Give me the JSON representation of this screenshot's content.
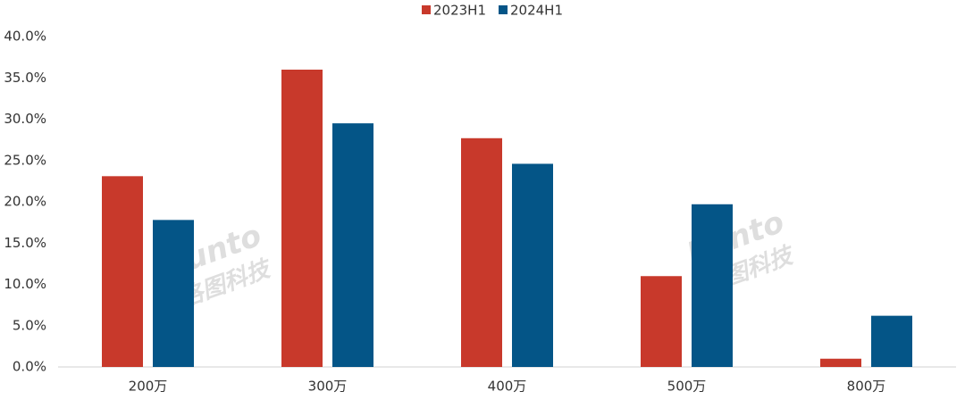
{
  "chart_data": {
    "type": "bar",
    "categories": [
      "200万",
      "300万",
      "400万",
      "500万",
      "800万"
    ],
    "series": [
      {
        "name": "2023H1",
        "color": "#c8392b",
        "values": [
          23.1,
          36.0,
          27.7,
          11.0,
          1.0
        ]
      },
      {
        "name": "2024H1",
        "color": "#045587",
        "values": [
          17.8,
          29.5,
          24.6,
          19.7,
          6.2
        ]
      }
    ],
    "ylim": [
      0,
      40
    ],
    "yticks": [
      {
        "value": 0,
        "label": "0.0%"
      },
      {
        "value": 5,
        "label": "5.0%"
      },
      {
        "value": 10,
        "label": "10.0%"
      },
      {
        "value": 15,
        "label": "15.0%"
      },
      {
        "value": 20,
        "label": "20.0%"
      },
      {
        "value": 25,
        "label": "25.0%"
      },
      {
        "value": 30,
        "label": "30.0%"
      },
      {
        "value": 35,
        "label": "35.0%"
      },
      {
        "value": 40,
        "label": "40.0%"
      }
    ],
    "grid": false,
    "legend": "top",
    "watermark": [
      "Runto",
      "洛图科技"
    ]
  }
}
